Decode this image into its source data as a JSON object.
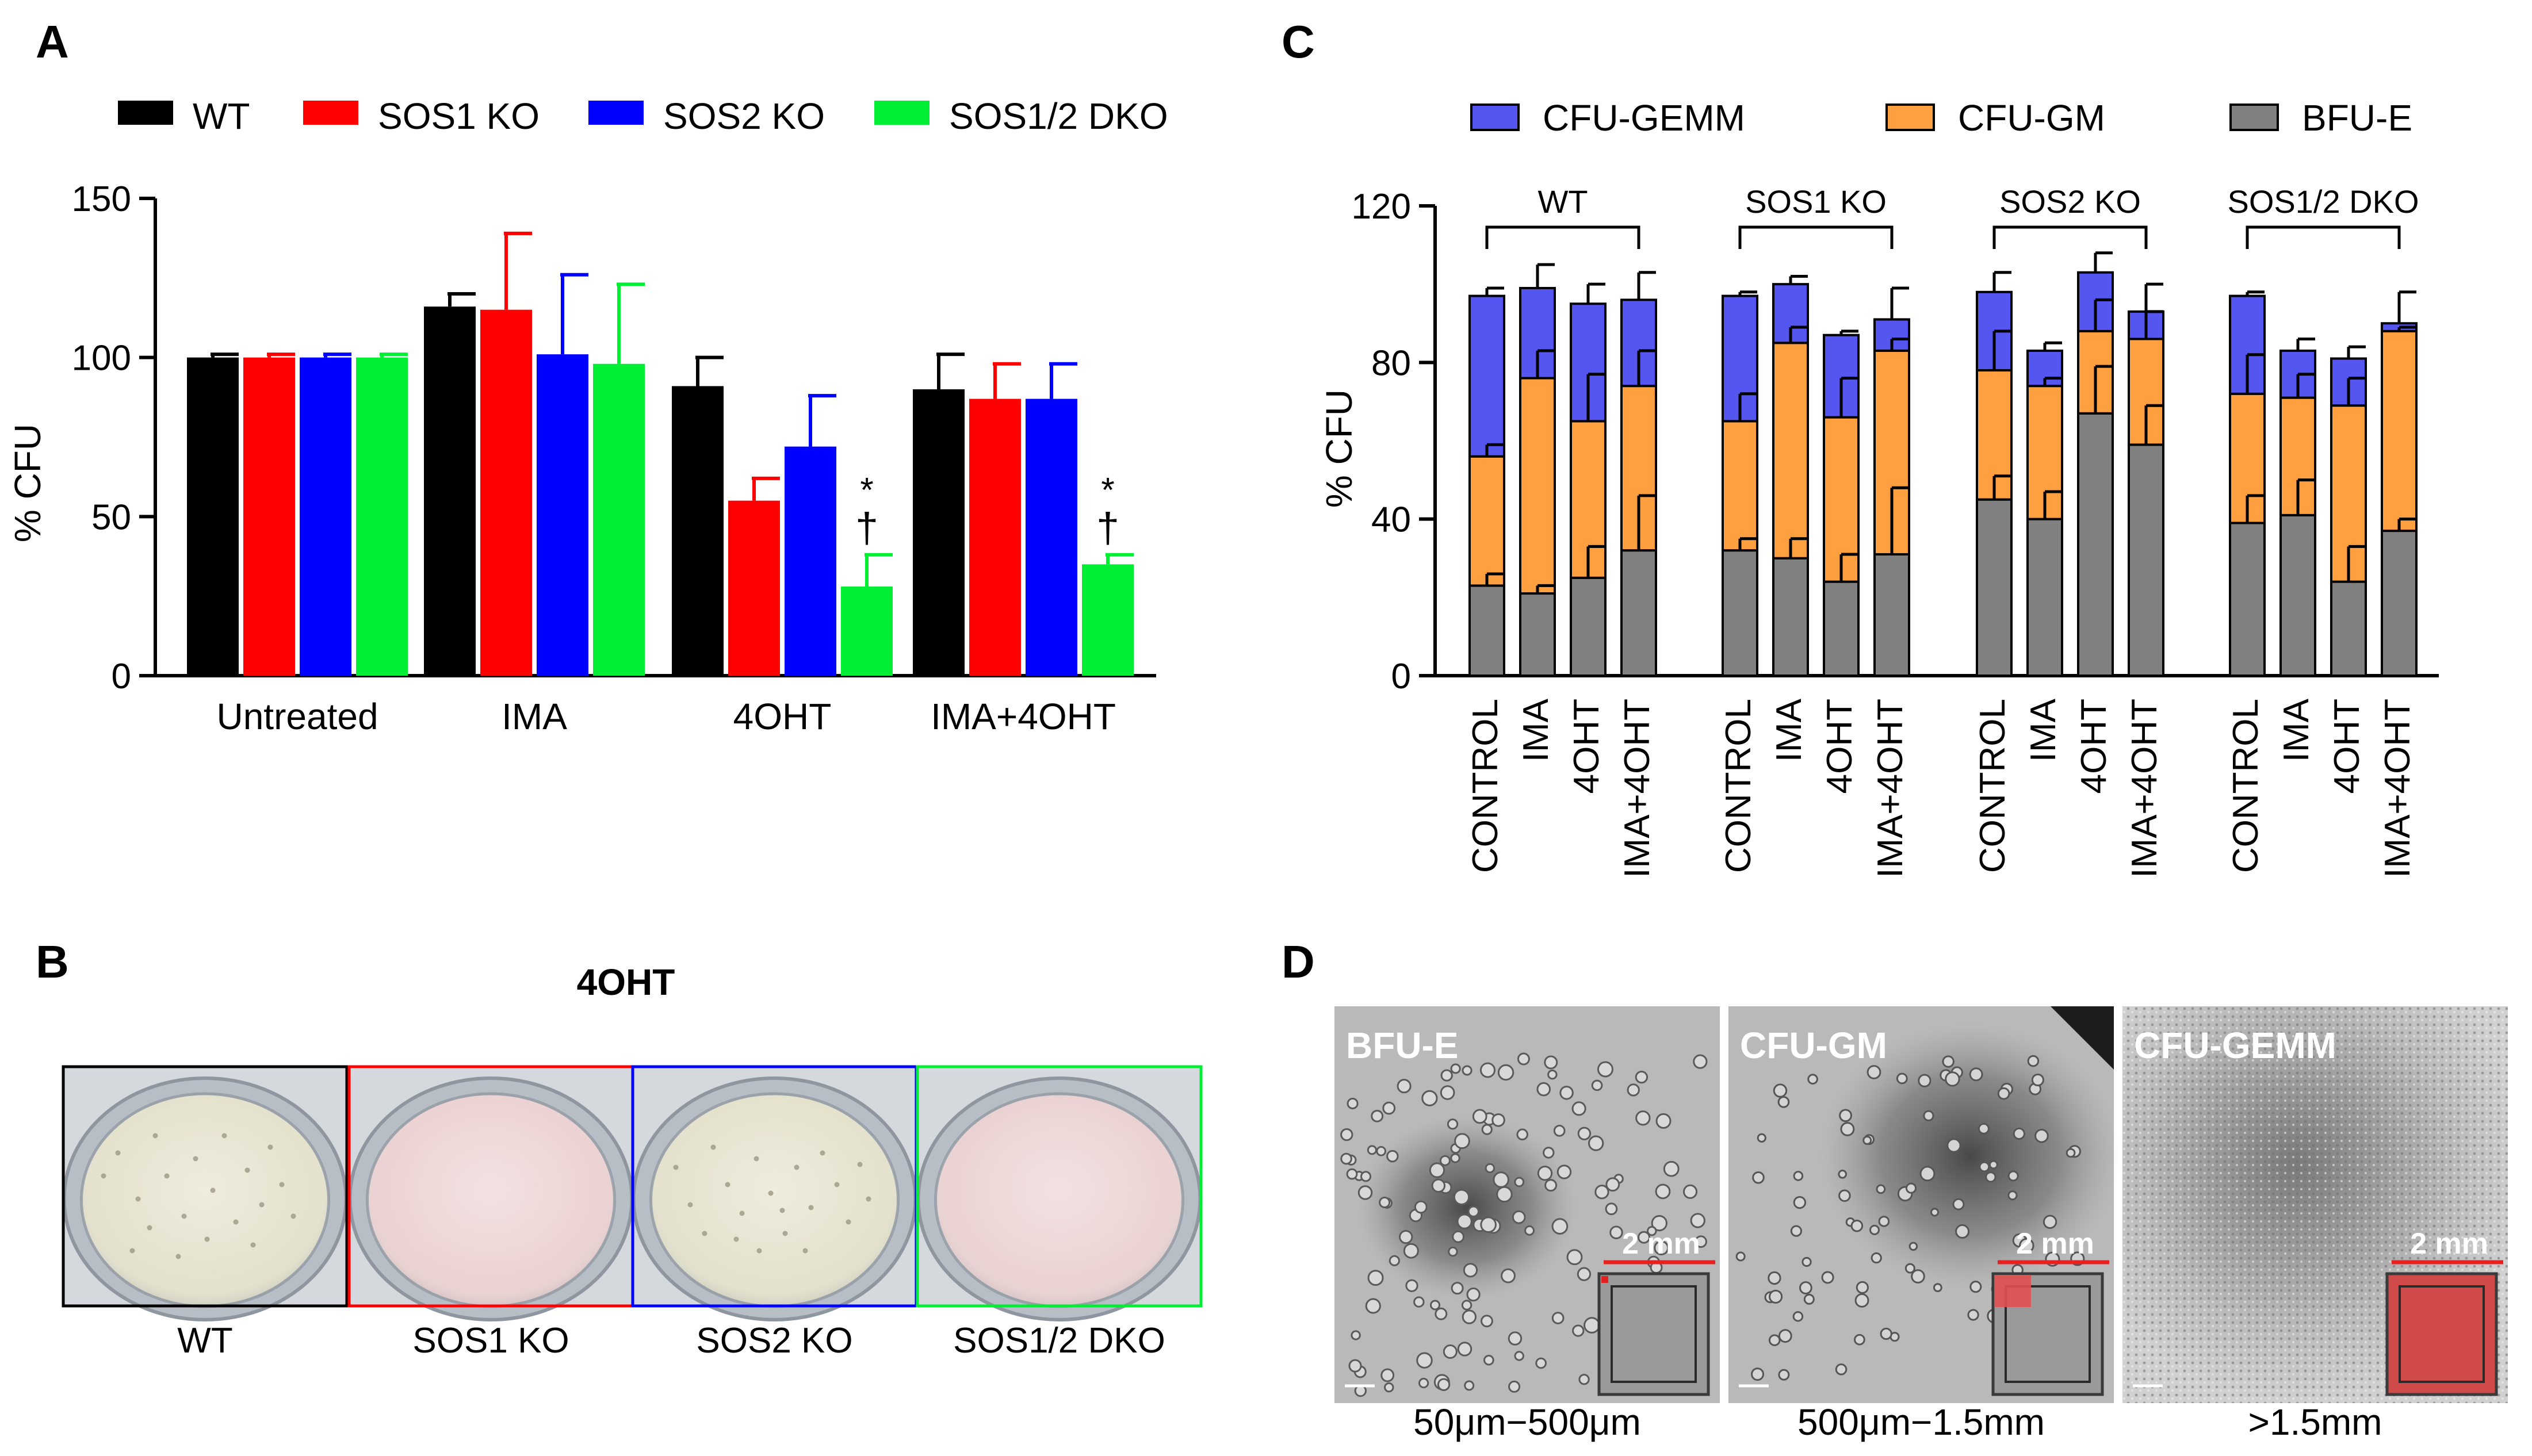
{
  "panels": {
    "a": "A",
    "b": "B",
    "c": "C",
    "d": "D"
  },
  "colors": {
    "wt": "#000000",
    "sos1": "#ff0000",
    "sos2": "#0000ff",
    "dko": "#00ee33",
    "cfu_gemm": "#5555f0",
    "cfu_gm": "#ffa040",
    "bfu_e": "#808080"
  },
  "chart_data": [
    {
      "id": "A",
      "type": "bar",
      "title": "",
      "xlabel": "",
      "ylabel": "% CFU",
      "ylim": [
        0,
        150
      ],
      "yticks": [
        0,
        50,
        100,
        150
      ],
      "legend_position": "top",
      "categories": [
        "Untreated",
        "IMA",
        "4OHT",
        "IMA+4OHT"
      ],
      "series": [
        {
          "name": "WT",
          "values": [
            100,
            116,
            91,
            90
          ],
          "errors": [
            1,
            4,
            9,
            11
          ]
        },
        {
          "name": "SOS1 KO",
          "values": [
            100,
            115,
            55,
            87
          ],
          "errors": [
            1,
            24,
            7,
            11
          ]
        },
        {
          "name": "SOS2 KO",
          "values": [
            100,
            101,
            72,
            87
          ],
          "errors": [
            1,
            25,
            16,
            11
          ]
        },
        {
          "name": "SOS1/2 DKO",
          "values": [
            100,
            98,
            28,
            35
          ],
          "errors": [
            1,
            25,
            10,
            3
          ]
        }
      ],
      "annotations": [
        {
          "category": "4OHT",
          "series": "SOS1/2 DKO",
          "star": "*",
          "dagger": "†"
        },
        {
          "category": "IMA+4OHT",
          "series": "SOS1/2 DKO",
          "star": "*",
          "dagger": "†"
        }
      ]
    },
    {
      "id": "C",
      "type": "bar",
      "stacked": true,
      "title": "",
      "xlabel": "",
      "ylabel": "% CFU",
      "ylim": [
        0,
        120
      ],
      "yticks": [
        0,
        40,
        80,
        120
      ],
      "legend_position": "top",
      "groups": [
        "WT",
        "SOS1 KO",
        "SOS2 KO",
        "SOS1/2 DKO"
      ],
      "categories": [
        "CONTROL",
        "IMA",
        "4OHT",
        "IMA+4OHT"
      ],
      "series": [
        {
          "name": "BFU-E",
          "values": [
            [
              23,
              21,
              25,
              32
            ],
            [
              32,
              30,
              24,
              31
            ],
            [
              45,
              40,
              67,
              59
            ],
            [
              39,
              41,
              24,
              37
            ]
          ],
          "errors": [
            [
              3,
              2,
              8,
              14
            ],
            [
              3,
              5,
              7,
              17
            ],
            [
              6,
              7,
              12,
              10
            ],
            [
              7,
              9,
              9,
              3
            ]
          ]
        },
        {
          "name": "CFU-GM",
          "values": [
            [
              33,
              55,
              40,
              42
            ],
            [
              33,
              55,
              42,
              52
            ],
            [
              33,
              34,
              21,
              27
            ],
            [
              33,
              30,
              45,
              51
            ]
          ],
          "errors": [
            [
              3,
              7,
              12,
              9
            ],
            [
              7,
              4,
              10,
              3
            ],
            [
              10,
              2,
              8,
              7
            ],
            [
              10,
              6,
              7,
              1
            ]
          ]
        },
        {
          "name": "CFU-GEMM",
          "values": [
            [
              41,
              23,
              30,
              22
            ],
            [
              32,
              15,
              21,
              8
            ],
            [
              20,
              9,
              15,
              7
            ],
            [
              25,
              12,
              12,
              2
            ]
          ],
          "errors": [
            [
              2,
              6,
              5,
              7
            ],
            [
              1,
              2,
              1,
              8
            ],
            [
              5,
              2,
              5,
              7
            ],
            [
              1,
              3,
              3,
              8
            ]
          ]
        }
      ]
    }
  ],
  "panel_b": {
    "title": "4OHT",
    "wells": [
      {
        "label": "WT",
        "medium_color": "#e4e2cc"
      },
      {
        "label": "SOS1 KO",
        "medium_color": "#ecd2d2"
      },
      {
        "label": "SOS2 KO",
        "medium_color": "#e4e2cc"
      },
      {
        "label": "SOS1/2 DKO",
        "medium_color": "#ebd2d2"
      }
    ]
  },
  "panel_d": {
    "images": [
      {
        "title": "BFU-E",
        "scale": "2 mm",
        "size_range": "50μm−500μm"
      },
      {
        "title": "CFU-GM",
        "scale": "2 mm",
        "size_range": "500μm−1.5mm"
      },
      {
        "title": "CFU-GEMM",
        "scale": "2 mm",
        "size_range": ">1.5mm"
      }
    ]
  }
}
